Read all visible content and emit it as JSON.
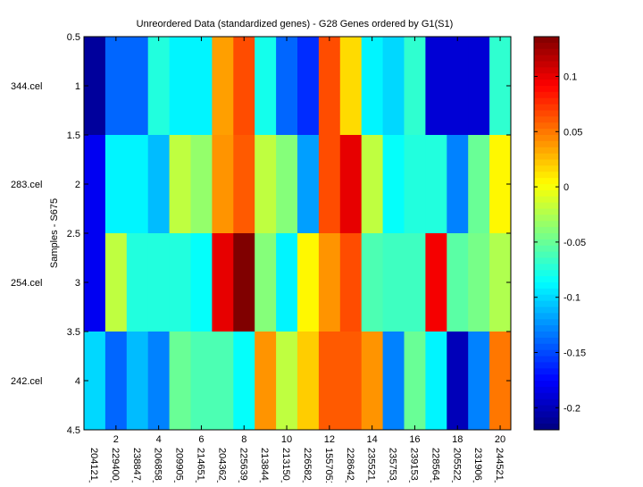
{
  "chart_data": {
    "type": "heatmap",
    "title": "Unreordered Data (standardized genes) - G28 Genes ordered by G1(S1)",
    "ylabel": "Samples - S675",
    "xlabel": "",
    "x_ticks": [
      "2",
      "4",
      "6",
      "8",
      "10",
      "12",
      "14",
      "16",
      "18",
      "20"
    ],
    "y_ticks": [
      "0.5",
      "1",
      "1.5",
      "2",
      "2.5",
      "3",
      "3.5",
      "4",
      "4.5"
    ],
    "row_labels": [
      "344.cel",
      "283.cel",
      "254.cel",
      "242.cel"
    ],
    "col_labels": [
      "204121_",
      "229400_",
      "238847_",
      "206858_",
      "209905_",
      "214651_",
      "204362_",
      "225639_",
      "213844_",
      "213150_",
      "226582_",
      "1557051",
      "228642_",
      "235521_",
      "235753_",
      "239153_",
      "228564_",
      "205522_",
      "231906_",
      "244521_"
    ],
    "colormap": "jet",
    "clim": [
      -0.22,
      0.136
    ],
    "colorbar_ticks": [
      "0.1",
      "0.05",
      "0",
      "-0.05",
      "-0.1",
      "-0.15",
      "-0.2"
    ],
    "values": [
      [
        -0.21,
        -0.14,
        -0.14,
        -0.075,
        -0.09,
        -0.09,
        0.036,
        0.065,
        -0.08,
        -0.14,
        -0.16,
        0.065,
        0.015,
        -0.09,
        -0.1,
        -0.07,
        -0.19,
        -0.19,
        -0.19,
        -0.07
      ],
      [
        -0.18,
        -0.09,
        -0.09,
        -0.11,
        -0.02,
        -0.035,
        0.04,
        0.06,
        -0.02,
        -0.04,
        -0.12,
        0.065,
        0.1,
        -0.02,
        -0.085,
        -0.075,
        -0.075,
        -0.13,
        -0.05,
        0.005
      ],
      [
        -0.18,
        -0.02,
        -0.075,
        -0.075,
        -0.075,
        -0.085,
        0.1,
        0.136,
        -0.04,
        -0.09,
        0.005,
        0.04,
        0.065,
        -0.06,
        -0.065,
        -0.065,
        0.095,
        -0.055,
        -0.045,
        -0.025
      ],
      [
        -0.1,
        -0.14,
        -0.11,
        -0.13,
        -0.05,
        -0.06,
        -0.06,
        -0.085,
        0.04,
        -0.02,
        0.02,
        0.06,
        0.06,
        0.04,
        -0.13,
        -0.05,
        -0.09,
        -0.2,
        -0.13,
        0.05
      ]
    ]
  }
}
